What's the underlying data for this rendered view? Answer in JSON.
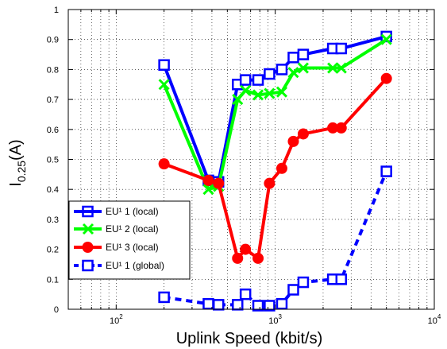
{
  "chart_data": {
    "type": "line",
    "xscale": "log",
    "xlim": [
      50,
      10000
    ],
    "ylim": [
      0,
      1
    ],
    "grid": true,
    "legend_position": "lower-left",
    "xlabel": "Uplink Speed (kbit/s)",
    "ylabel_main": "I",
    "ylabel_sub": "0.25",
    "ylabel_suffix": "(A)",
    "xticks": [
      {
        "value": 100,
        "base": "10",
        "exp": "2"
      },
      {
        "value": 1000,
        "base": "10",
        "exp": "3"
      },
      {
        "value": 10000,
        "base": "10",
        "exp": "4"
      }
    ],
    "yticks": [
      0,
      0.1,
      0.2,
      0.3,
      0.4,
      0.5,
      0.6,
      0.7,
      0.8,
      0.9,
      1
    ],
    "ytick_labels": [
      "0",
      "0.1",
      "0.2",
      "0.3",
      "0.4",
      "0.5",
      "0.6",
      "0.7",
      "0.8",
      "0.9",
      "1"
    ],
    "series": [
      {
        "name": "EU¹ 1 (local)",
        "color": "#0000ff",
        "marker": "square",
        "linestyle": "solid",
        "x": [
          200,
          380,
          440,
          580,
          650,
          780,
          920,
          1100,
          1300,
          1500,
          2300,
          2600,
          5000
        ],
        "y": [
          0.815,
          0.43,
          0.425,
          0.75,
          0.765,
          0.765,
          0.785,
          0.8,
          0.84,
          0.85,
          0.87,
          0.87,
          0.91
        ]
      },
      {
        "name": "EU¹ 2 (local)",
        "color": "#00ff00",
        "marker": "x",
        "linestyle": "solid",
        "x": [
          200,
          380,
          440,
          580,
          650,
          780,
          920,
          1100,
          1300,
          1500,
          2300,
          2600,
          5000
        ],
        "y": [
          0.75,
          0.4,
          0.41,
          0.7,
          0.73,
          0.715,
          0.72,
          0.725,
          0.79,
          0.805,
          0.805,
          0.805,
          0.9
        ]
      },
      {
        "name": "EU¹ 3 (local)",
        "color": "#ff0000",
        "marker": "circle",
        "linestyle": "solid",
        "x": [
          200,
          380,
          440,
          580,
          650,
          780,
          920,
          1100,
          1300,
          1500,
          2300,
          2600,
          5000
        ],
        "y": [
          0.485,
          0.43,
          0.42,
          0.17,
          0.2,
          0.17,
          0.42,
          0.47,
          0.56,
          0.585,
          0.605,
          0.605,
          0.77
        ]
      },
      {
        "name": "EU¹ 1 (global)",
        "color": "#0000ff",
        "marker": "square",
        "linestyle": "dashed",
        "x": [
          200,
          380,
          440,
          580,
          650,
          780,
          920,
          1100,
          1300,
          1500,
          2300,
          2600,
          5000
        ],
        "y": [
          0.04,
          0.018,
          0.015,
          0.015,
          0.05,
          0.012,
          0.012,
          0.018,
          0.065,
          0.09,
          0.1,
          0.1,
          0.46
        ]
      }
    ]
  }
}
